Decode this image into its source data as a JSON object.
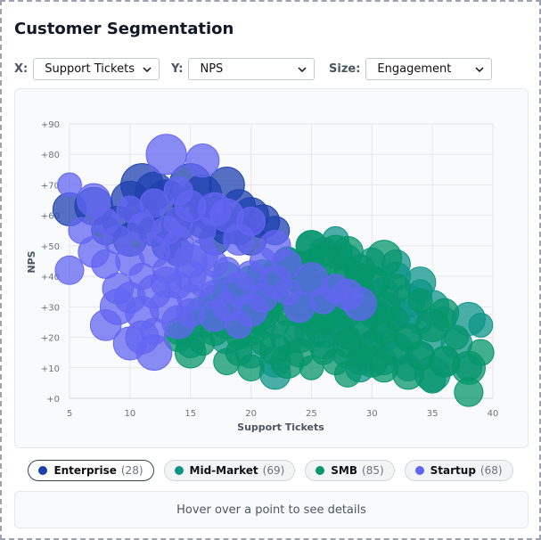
{
  "header": {
    "title": "Customer Segmentation"
  },
  "controls": [
    {
      "label": "X:",
      "value": "Support Tickets"
    },
    {
      "label": "Y:",
      "value": "NPS"
    },
    {
      "label": "Size:",
      "value": "Engagement"
    }
  ],
  "chart_data": {
    "type": "scatter",
    "xlabel": "Support Tickets",
    "ylabel": "NPS",
    "xlim": [
      5,
      40
    ],
    "ylim": [
      0,
      90
    ],
    "xticks": [
      5,
      10,
      15,
      20,
      25,
      30,
      35,
      40
    ],
    "yticks": [
      {
        "value": 0,
        "label": "+0"
      },
      {
        "value": 10,
        "label": "+10"
      },
      {
        "value": 20,
        "label": "+20"
      },
      {
        "value": 30,
        "label": "+30"
      },
      {
        "value": 40,
        "label": "+40"
      },
      {
        "value": 50,
        "label": "+50"
      },
      {
        "value": 60,
        "label": "+60"
      },
      {
        "value": 70,
        "label": "+70"
      },
      {
        "value": 80,
        "label": "+80"
      },
      {
        "value": 90,
        "label": "+90"
      }
    ],
    "grid": true,
    "series": [
      {
        "name": "Enterprise",
        "count_label": "(28)",
        "color": "#1e40af",
        "x": [
          5,
          7,
          8,
          9,
          10,
          11,
          11,
          12,
          12,
          13,
          13,
          14,
          15,
          15,
          16,
          16,
          17,
          17,
          18,
          18,
          19,
          19,
          20,
          20,
          21,
          22,
          10,
          14
        ],
        "values": [
          62,
          63,
          55,
          58,
          52,
          70,
          60,
          68,
          55,
          65,
          50,
          57,
          70,
          62,
          67,
          58,
          60,
          52,
          70,
          56,
          63,
          55,
          60,
          52,
          58,
          55,
          65,
          48
        ],
        "size": [
          60,
          70,
          50,
          55,
          60,
          80,
          65,
          70,
          55,
          75,
          50,
          60,
          80,
          65,
          70,
          60,
          70,
          55,
          65,
          60,
          60,
          50,
          65,
          55,
          60,
          50,
          70,
          50
        ]
      },
      {
        "name": "Mid-Market",
        "count_label": "(69)",
        "color": "#0d9488",
        "x": [
          14,
          15,
          16,
          17,
          18,
          19,
          20,
          20,
          21,
          21,
          22,
          22,
          23,
          23,
          24,
          24,
          25,
          25,
          25,
          26,
          26,
          26,
          27,
          27,
          27,
          28,
          28,
          28,
          29,
          29,
          29,
          30,
          30,
          30,
          31,
          31,
          31,
          32,
          32,
          32,
          33,
          33,
          33,
          34,
          34,
          34,
          35,
          35,
          35,
          36,
          36,
          37,
          38,
          38,
          39,
          24,
          26,
          28,
          30,
          32,
          34,
          22,
          20,
          18,
          27,
          29,
          31,
          33,
          25
        ],
        "values": [
          22,
          18,
          25,
          30,
          20,
          35,
          28,
          15,
          40,
          24,
          32,
          12,
          45,
          20,
          38,
          28,
          50,
          33,
          22,
          48,
          30,
          18,
          52,
          35,
          25,
          42,
          28,
          15,
          38,
          22,
          10,
          45,
          30,
          18,
          35,
          25,
          12,
          40,
          28,
          15,
          32,
          20,
          10,
          38,
          25,
          14,
          30,
          20,
          8,
          26,
          12,
          18,
          10,
          26,
          24,
          42,
          36,
          46,
          38,
          44,
          35,
          8,
          30,
          40,
          24,
          12,
          20,
          28,
          45
        ],
        "size": [
          45,
          50,
          55,
          40,
          60,
          50,
          45,
          55,
          60,
          40,
          50,
          55,
          45,
          60,
          40,
          50,
          55,
          45,
          60,
          50,
          40,
          55,
          45,
          50,
          60,
          45,
          50,
          55,
          40,
          60,
          50,
          45,
          55,
          40,
          50,
          60,
          45,
          50,
          55,
          40,
          60,
          50,
          45,
          55,
          40,
          50,
          60,
          45,
          65,
          40,
          50,
          55,
          45,
          60,
          40,
          50,
          55,
          45,
          60,
          50,
          40,
          55,
          45,
          50,
          60,
          45,
          50,
          55,
          40
        ]
      },
      {
        "name": "SMB",
        "count_label": "(85)",
        "color": "#059669",
        "x": [
          14,
          15,
          15,
          16,
          16,
          17,
          17,
          18,
          18,
          18,
          19,
          19,
          19,
          20,
          20,
          20,
          20,
          21,
          21,
          21,
          22,
          22,
          22,
          22,
          23,
          23,
          23,
          23,
          24,
          24,
          24,
          24,
          25,
          25,
          25,
          25,
          26,
          26,
          26,
          26,
          27,
          27,
          27,
          27,
          28,
          28,
          28,
          28,
          29,
          29,
          29,
          29,
          30,
          30,
          30,
          31,
          31,
          31,
          32,
          32,
          32,
          33,
          33,
          34,
          34,
          35,
          35,
          36,
          36,
          37,
          38,
          38,
          39,
          21,
          23,
          25,
          27,
          29,
          31,
          26,
          28,
          30,
          24,
          22,
          20
        ],
        "values": [
          20,
          25,
          15,
          28,
          18,
          22,
          32,
          12,
          25,
          35,
          20,
          30,
          15,
          26,
          38,
          10,
          22,
          34,
          18,
          28,
          40,
          24,
          16,
          32,
          45,
          12,
          28,
          36,
          20,
          30,
          42,
          15,
          25,
          50,
          10,
          38,
          22,
          32,
          45,
          15,
          28,
          40,
          12,
          35,
          20,
          30,
          48,
          8,
          25,
          35,
          14,
          42,
          18,
          28,
          38,
          22,
          10,
          30,
          26,
          16,
          36,
          20,
          8,
          32,
          14,
          24,
          6,
          28,
          12,
          20,
          10,
          2,
          15,
          30,
          42,
          36,
          48,
          40,
          46,
          26,
          18,
          12,
          44,
          40,
          24
        ],
        "size": [
          50,
          45,
          55,
          60,
          40,
          50,
          55,
          45,
          60,
          50,
          40,
          55,
          45,
          50,
          60,
          45,
          50,
          55,
          40,
          60,
          50,
          45,
          55,
          40,
          50,
          60,
          45,
          50,
          55,
          40,
          60,
          50,
          45,
          55,
          40,
          50,
          60,
          45,
          65,
          40,
          50,
          55,
          45,
          60,
          40,
          50,
          55,
          45,
          60,
          50,
          40,
          55,
          45,
          50,
          60,
          45,
          50,
          55,
          40,
          60,
          50,
          45,
          55,
          40,
          50,
          60,
          45,
          50,
          55,
          40,
          60,
          50,
          45,
          55,
          40,
          50,
          60,
          45,
          65,
          40,
          50,
          55,
          45,
          60,
          40
        ]
      },
      {
        "name": "Startup",
        "count_label": "(68)",
        "color": "#6366f1",
        "x": [
          5,
          5,
          6,
          7,
          7,
          8,
          8,
          8,
          9,
          9,
          9,
          10,
          10,
          10,
          10,
          11,
          11,
          11,
          11,
          12,
          12,
          12,
          12,
          12,
          13,
          13,
          13,
          13,
          13,
          14,
          14,
          14,
          14,
          14,
          15,
          15,
          15,
          15,
          15,
          16,
          16,
          16,
          16,
          17,
          17,
          17,
          17,
          18,
          18,
          18,
          19,
          19,
          19,
          20,
          20,
          20,
          21,
          21,
          22,
          22,
          23,
          23,
          24,
          25,
          26,
          27,
          28,
          29
        ],
        "values": [
          70,
          42,
          55,
          48,
          65,
          44,
          24,
          58,
          30,
          52,
          36,
          18,
          62,
          45,
          33,
          20,
          56,
          40,
          28,
          15,
          64,
          48,
          35,
          22,
          80,
          55,
          38,
          30,
          42,
          68,
          50,
          25,
          37,
          58,
          63,
          45,
          33,
          28,
          40,
          78,
          55,
          38,
          47,
          62,
          44,
          34,
          27,
          60,
          42,
          30,
          52,
          36,
          24,
          58,
          40,
          29,
          45,
          33,
          50,
          38,
          35,
          44,
          30,
          39,
          32,
          36,
          34,
          31
        ],
        "size": [
          40,
          50,
          45,
          55,
          60,
          50,
          55,
          45,
          65,
          50,
          55,
          60,
          45,
          50,
          55,
          60,
          50,
          45,
          60,
          65,
          50,
          55,
          60,
          45,
          75,
          50,
          55,
          60,
          45,
          50,
          55,
          60,
          45,
          50,
          55,
          60,
          45,
          50,
          55,
          60,
          45,
          50,
          55,
          60,
          45,
          50,
          55,
          60,
          45,
          50,
          55,
          60,
          45,
          50,
          55,
          60,
          45,
          50,
          55,
          60,
          45,
          50,
          55,
          60,
          45,
          50,
          55,
          60
        ]
      }
    ]
  },
  "details": {
    "hint": "Hover over a point to see details"
  }
}
